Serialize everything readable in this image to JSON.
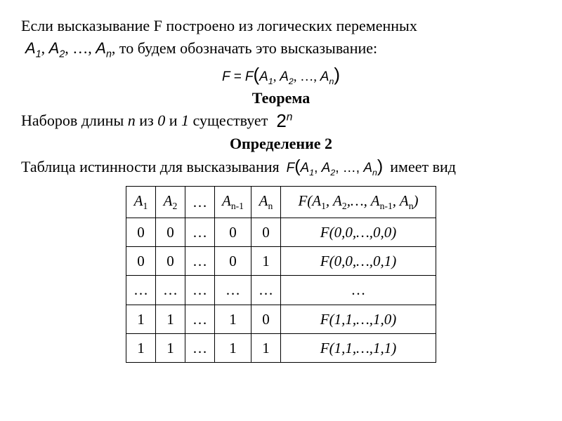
{
  "line1": "Если высказывание F построено из логических переменных",
  "varlist_prefix_A": "A",
  "varlist_commadots": ", …, ",
  "line2_tail": ", то будем обозначать это высказывание:",
  "formula1_lhs": "F = F",
  "lparen": "(",
  "rparen": ")",
  "theorem_label": "Теорема",
  "line3_a": "Наборов длины ",
  "line3_n": "n",
  "line3_b": " из ",
  "line3_zero": "0",
  "line3_and": " и ",
  "line3_one": "1",
  "line3_c": " существует",
  "two": "2",
  "n_sup": "n",
  "def2_label": "Определение 2",
  "line4_a": "Таблица истинности для высказывания",
  "line4_tail": "имеет вид",
  "F": "F",
  "comma": ", ",
  "dots": "…",
  "sub1": "1",
  "sub2": "2",
  "subn": "n",
  "subnm1": "n-1",
  "table": {
    "headers": {
      "a1": "A",
      "a1s": "1",
      "a2": "A",
      "a2s": "2",
      "dots": "…",
      "anm1": "A",
      "anm1s": "n-1",
      "an": "A",
      "ans": "n",
      "f_full": "F(A₁, A₂,…, Aₙ₋₁, Aₙ)"
    },
    "rows": [
      {
        "c": [
          "0",
          "0",
          "…",
          "0",
          "0"
        ],
        "f": "F(0,0,…,0,0)"
      },
      {
        "c": [
          "0",
          "0",
          "…",
          "0",
          "1"
        ],
        "f": "F(0,0,…,0,1)"
      },
      {
        "c": [
          "…",
          "…",
          "…",
          "…",
          "…"
        ],
        "f": "…"
      },
      {
        "c": [
          "1",
          "1",
          "…",
          "1",
          "0"
        ],
        "f": "F(1,1,…,1,0)"
      },
      {
        "c": [
          "1",
          "1",
          "…",
          "1",
          "1"
        ],
        "f": "F(1,1,…,1,1)"
      }
    ]
  }
}
